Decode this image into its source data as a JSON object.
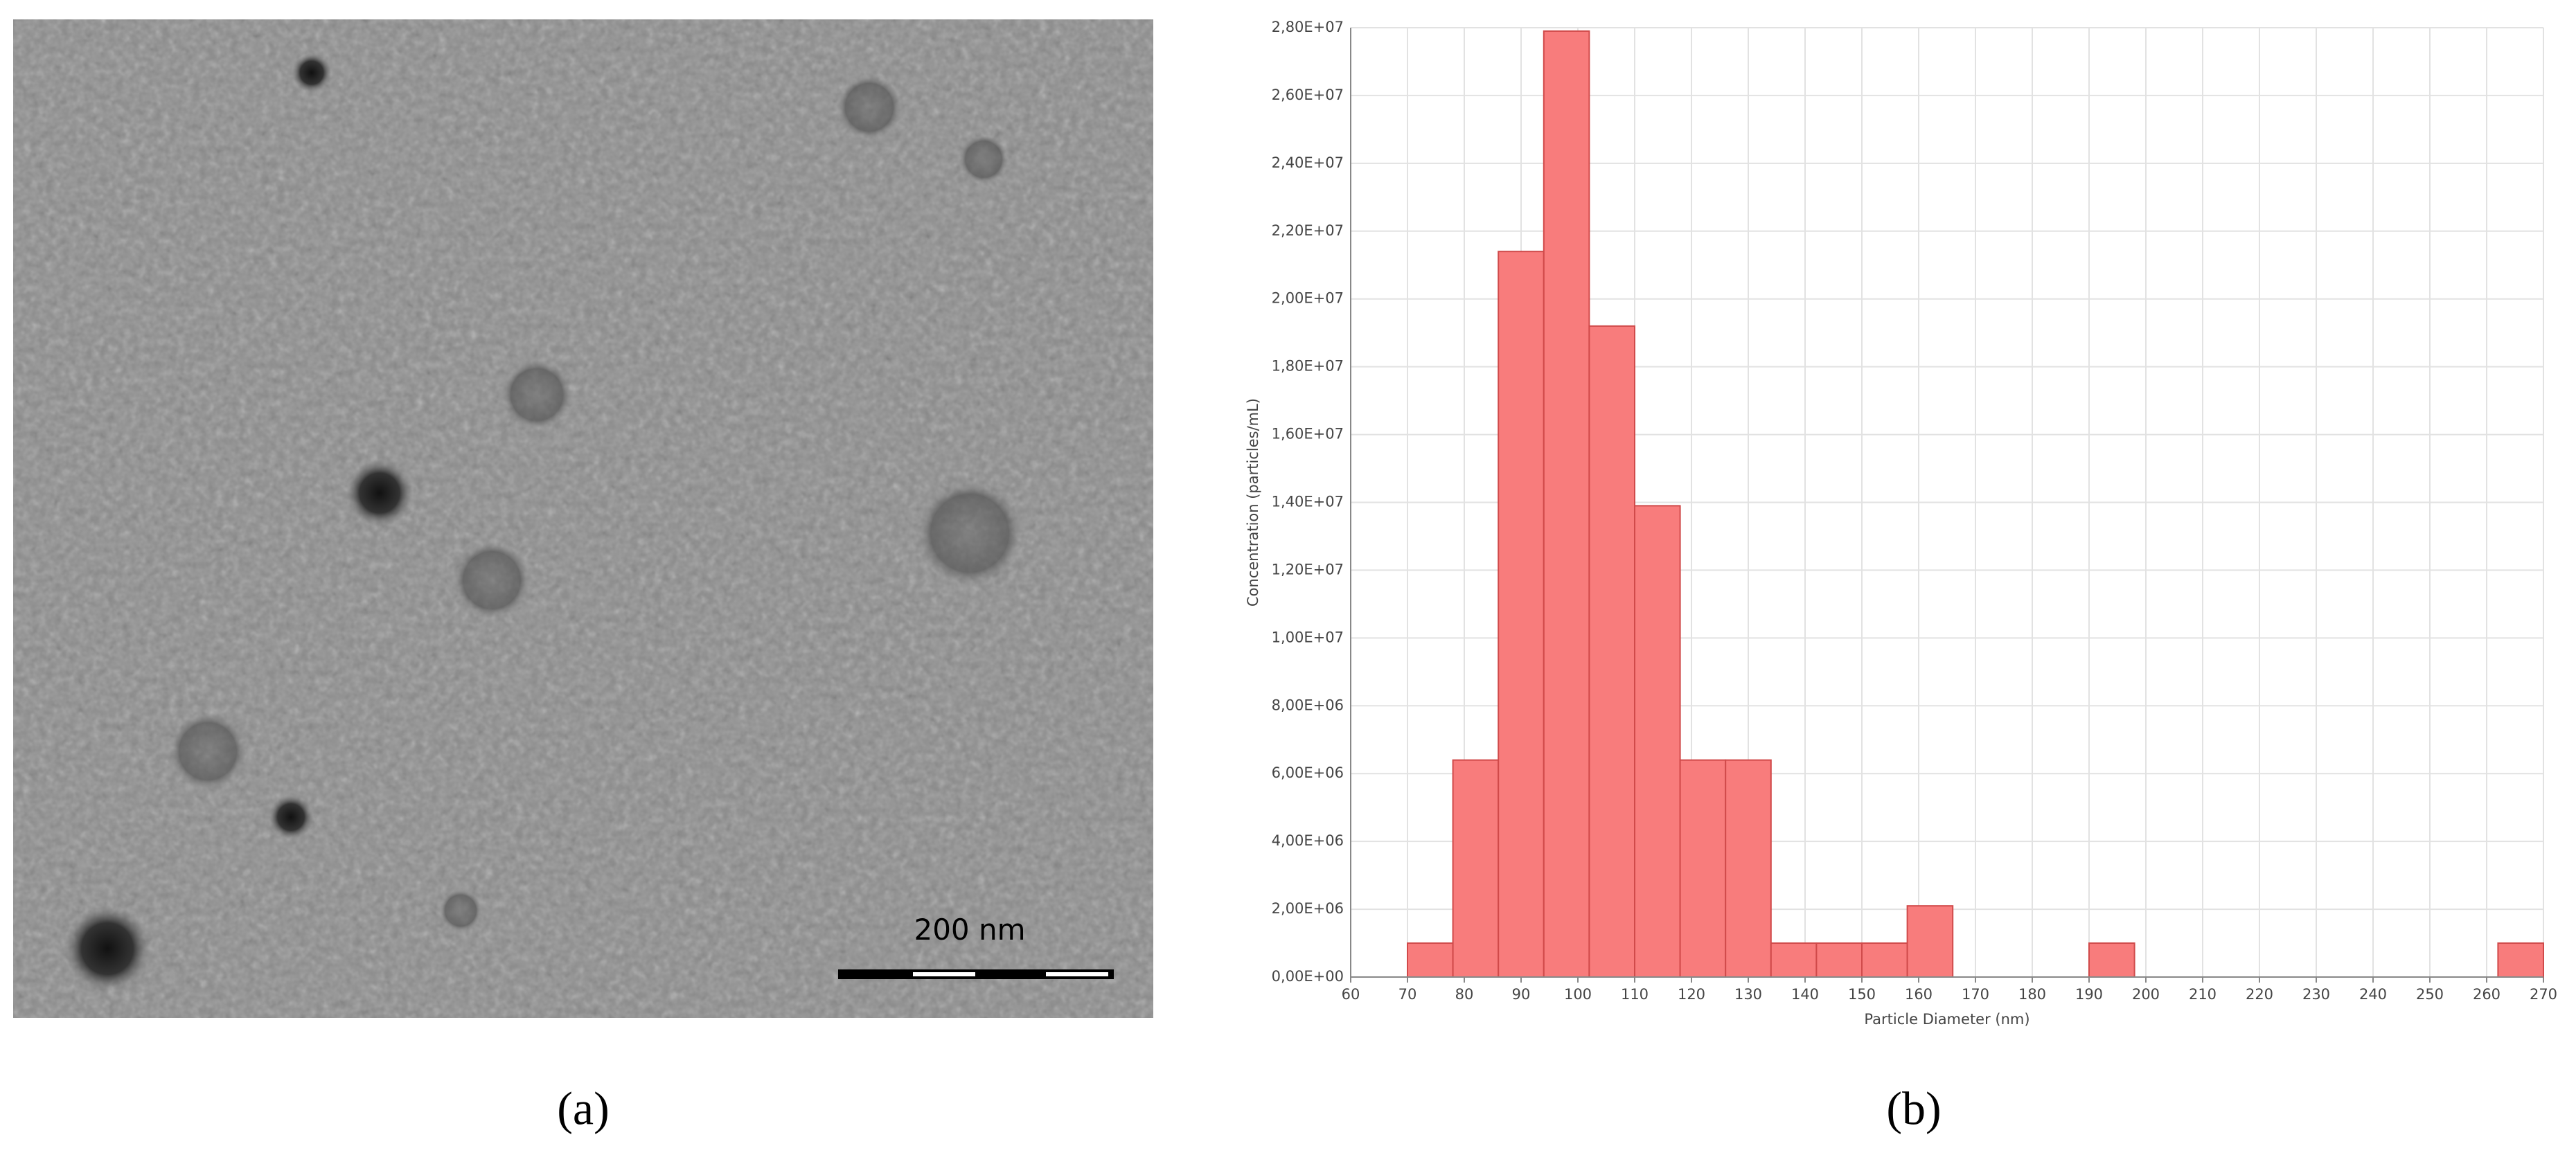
{
  "figure": {
    "panel_a_label": "(a)",
    "scale_bar_label": "200 nm",
    "panel_b_label": "(b)"
  },
  "chart_data": {
    "type": "histogram",
    "xlabel": "Particle Diameter (nm)",
    "ylabel": "Concentration (particles/mL)",
    "bins": [
      70,
      78,
      86,
      94,
      102,
      110,
      118,
      126,
      134,
      142,
      150,
      158,
      166,
      174,
      182,
      190,
      198,
      206,
      214,
      222,
      230,
      238,
      246,
      254,
      262,
      270
    ],
    "values": [
      1000000,
      6400000,
      21400000,
      27900000,
      19200000,
      13900000,
      6400000,
      6400000,
      1000000,
      1000000,
      1000000,
      2100000,
      0,
      0,
      0,
      1000000,
      0,
      0,
      0,
      0,
      0,
      0,
      0,
      0,
      1000000
    ],
    "color": "#f87c7c",
    "edge_color": "#d04a4a",
    "xlim": [
      60,
      270
    ],
    "xticks": [
      60,
      70,
      80,
      90,
      100,
      110,
      120,
      130,
      140,
      150,
      160,
      170,
      180,
      190,
      200,
      210,
      220,
      230,
      240,
      250,
      260,
      270
    ],
    "ylim": [
      0,
      28000000
    ],
    "yticks": [
      {
        "value": 0,
        "label": "0,00E+00"
      },
      {
        "value": 2000000,
        "label": "2,00E+06"
      },
      {
        "value": 4000000,
        "label": "4,00E+06"
      },
      {
        "value": 6000000,
        "label": "6,00E+06"
      },
      {
        "value": 8000000,
        "label": "8,00E+06"
      },
      {
        "value": 10000000,
        "label": "1,00E+07"
      },
      {
        "value": 12000000,
        "label": "1,20E+07"
      },
      {
        "value": 14000000,
        "label": "1,40E+07"
      },
      {
        "value": 16000000,
        "label": "1,60E+07"
      },
      {
        "value": 18000000,
        "label": "1,80E+07"
      },
      {
        "value": 20000000,
        "label": "2,00E+07"
      },
      {
        "value": 22000000,
        "label": "2,20E+07"
      },
      {
        "value": 24000000,
        "label": "2,40E+07"
      },
      {
        "value": 26000000,
        "label": "2,60E+07"
      },
      {
        "value": 28000000,
        "label": "2,80E+07"
      }
    ],
    "grid": true
  }
}
